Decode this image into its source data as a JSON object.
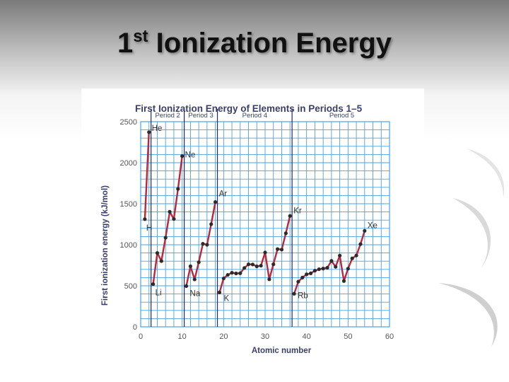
{
  "slide": {
    "title_main": "Ionization Energy",
    "title_number": "1",
    "title_suffix": "st"
  },
  "colors": {
    "grid": "#4aa3df",
    "line": "#b8283a",
    "point": "#2b2b2b",
    "period_divider": "#1f2a6b"
  },
  "chart_data": {
    "type": "line",
    "title": "First Ionization Energy of Elements in Periods 1–5",
    "xlabel": "Atomic number",
    "ylabel": "First ionization energy (kJ/mol)",
    "xlim": [
      0,
      60
    ],
    "ylim": [
      0,
      2500
    ],
    "xticks": [
      0,
      10,
      20,
      30,
      40,
      50,
      60
    ],
    "yticks": [
      0,
      500,
      1000,
      1500,
      2000,
      2500
    ],
    "grid": true,
    "period_boundaries": [
      2.5,
      10.5,
      18.5,
      36.5
    ],
    "period_labels": [
      {
        "label": "Period 2",
        "x": 6.5
      },
      {
        "label": "Period 3",
        "x": 14.5
      },
      {
        "label": "Period 4",
        "x": 27.5
      },
      {
        "label": "Period 5",
        "x": 48.5
      }
    ],
    "series": [
      {
        "x": [
          1,
          2
        ],
        "y": [
          1312,
          2372
        ]
      },
      {
        "x": [
          3,
          4,
          5,
          6,
          7,
          8,
          9,
          10
        ],
        "y": [
          520,
          900,
          801,
          1086,
          1402,
          1314,
          1681,
          2081
        ]
      },
      {
        "x": [
          11,
          12,
          13,
          14,
          15,
          16,
          17,
          18
        ],
        "y": [
          496,
          738,
          578,
          787,
          1012,
          1000,
          1251,
          1521
        ]
      },
      {
        "x": [
          19,
          20,
          21,
          22,
          23,
          24,
          25,
          26,
          27,
          28,
          29,
          30,
          31,
          32,
          33,
          34,
          35,
          36
        ],
        "y": [
          419,
          590,
          633,
          659,
          651,
          653,
          717,
          762,
          760,
          737,
          745,
          906,
          579,
          762,
          947,
          941,
          1140,
          1351
        ]
      },
      {
        "x": [
          37,
          38,
          39,
          40,
          41,
          42,
          43,
          44,
          45,
          46,
          47,
          48,
          49,
          50,
          51,
          52,
          53,
          54
        ],
        "y": [
          403,
          550,
          600,
          640,
          652,
          684,
          702,
          710,
          720,
          804,
          731,
          868,
          558,
          709,
          834,
          869,
          1008,
          1170
        ]
      }
    ],
    "annotations": [
      {
        "label": "He",
        "x": 2,
        "y": 2372
      },
      {
        "label": "Ne",
        "x": 10,
        "y": 2081
      },
      {
        "label": "Ar",
        "x": 18,
        "y": 1521
      },
      {
        "label": "Kr",
        "x": 36,
        "y": 1351
      },
      {
        "label": "Xe",
        "x": 54,
        "y": 1170
      },
      {
        "label": "H",
        "x": 1,
        "y": 1312
      },
      {
        "label": "Li",
        "x": 3,
        "y": 520
      },
      {
        "label": "Na",
        "x": 11,
        "y": 496
      },
      {
        "label": "K",
        "x": 19,
        "y": 419
      },
      {
        "label": "Rb",
        "x": 37,
        "y": 403
      }
    ]
  }
}
